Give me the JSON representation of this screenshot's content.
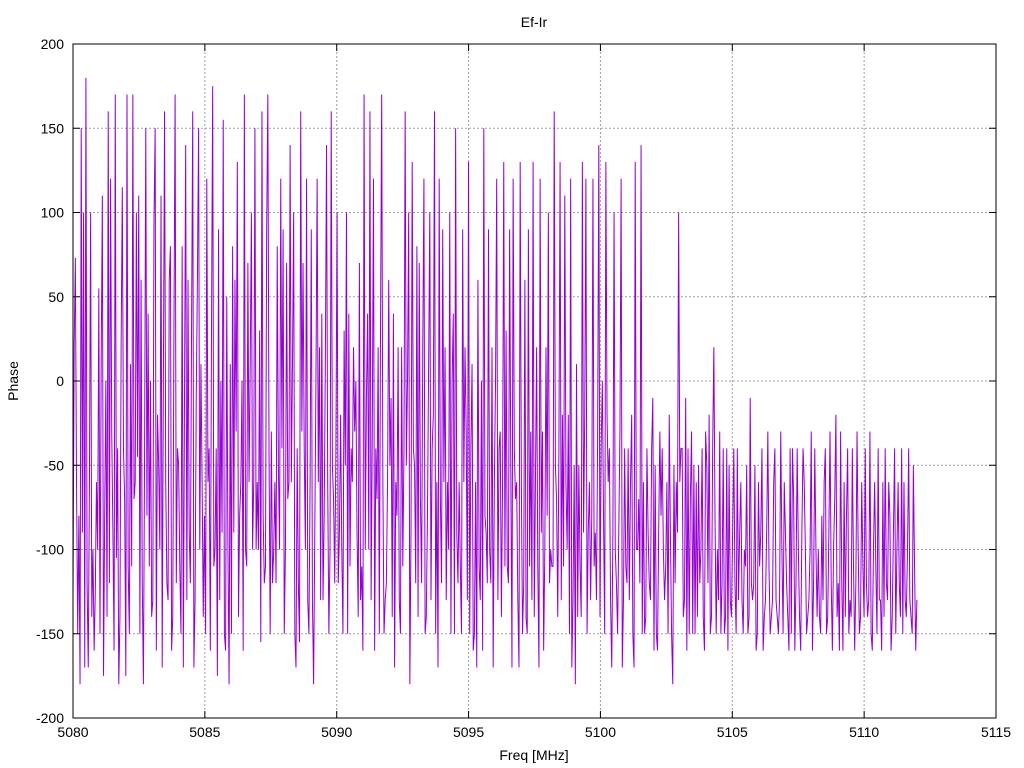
{
  "chart_data": {
    "type": "line",
    "title": "Ef-Ir",
    "xlabel": "Freq [MHz]",
    "ylabel": "Phase",
    "xlim": [
      5080,
      5115
    ],
    "ylim": [
      -200,
      200
    ],
    "xticks": [
      "5080",
      "5085",
      "5090",
      "5095",
      "5100",
      "5105",
      "5110",
      "5115"
    ],
    "yticks": [
      "200",
      "150",
      "100",
      "50",
      "0",
      "-50",
      "-100",
      "-150",
      "-200"
    ],
    "grid": true,
    "legend": "none",
    "series": [
      {
        "color": "#9400d3",
        "x_start": 5080.0,
        "x_end": 5112.0,
        "x_step": 0.05,
        "values": [
          -130,
          20,
          73,
          -60,
          -150,
          -80,
          -180,
          150,
          -90,
          100,
          -170,
          180,
          -120,
          -170,
          -60,
          100,
          -140,
          -100,
          -160,
          -125,
          -60,
          -100,
          55,
          -150,
          10,
          110,
          -175,
          -80,
          0,
          -140,
          160,
          -120,
          120,
          -30,
          -90,
          -160,
          170,
          -105,
          -40,
          -180,
          -140,
          20,
          115,
          -40,
          -70,
          -175,
          170,
          -110,
          -150,
          10,
          -110,
          170,
          -70,
          -60,
          100,
          -45,
          110,
          -150,
          60,
          -120,
          -180,
          -40,
          150,
          -80,
          40,
          -110,
          0,
          -140,
          -130,
          95,
          150,
          -160,
          -20,
          -50,
          -100,
          110,
          -170,
          0,
          160,
          -60,
          -120,
          -130,
          60,
          80,
          -160,
          -140,
          30,
          170,
          -120,
          -40,
          -50,
          -110,
          -150,
          80,
          -170,
          -10,
          140,
          -130,
          60,
          -90,
          -120,
          30,
          160,
          -170,
          -130,
          -10,
          60,
          150,
          -100,
          10,
          -60,
          -140,
          -80,
          -150,
          120,
          -60,
          -40,
          -160,
          30,
          175,
          -110,
          -100,
          -40,
          -175,
          90,
          -130,
          0,
          -90,
          155,
          -150,
          -160,
          50,
          -100,
          -180,
          10,
          -150,
          80,
          -90,
          60,
          -30,
          130,
          -140,
          -80,
          -60,
          0,
          -160,
          170,
          -100,
          -110,
          70,
          -60,
          10,
          100,
          -100,
          -60,
          150,
          -100,
          -60,
          -100,
          30,
          -155,
          160,
          -80,
          -120,
          -110,
          90,
          170,
          -40,
          -150,
          -30,
          -120,
          -100,
          -60,
          -120,
          80,
          -50,
          -100,
          120,
          -40,
          90,
          -150,
          -100,
          70,
          -70,
          -60,
          140,
          -60,
          10,
          100,
          -150,
          -170,
          -40,
          -120,
          -155,
          160,
          -30,
          70,
          -40,
          -100,
          120,
          -130,
          -150,
          -60,
          90,
          -130,
          -180,
          -90,
          0,
          120,
          -60,
          20,
          -130,
          40,
          -130,
          -80,
          10,
          140,
          -60,
          -150,
          -100,
          160,
          -50,
          -70,
          -120,
          -40,
          100,
          -120,
          -90,
          -20,
          -100,
          -150,
          30,
          -50,
          100,
          -150,
          40,
          -110,
          -40,
          -60,
          20,
          -30,
          0,
          -90,
          -140,
          70,
          -130,
          -110,
          -160,
          170,
          -100,
          -10,
          40,
          -100,
          160,
          -130,
          -30,
          120,
          -160,
          -40,
          -70,
          20,
          -150,
          30,
          170,
          -60,
          -150,
          -130,
          -120,
          -60,
          60,
          -50,
          -10,
          -140,
          40,
          -170,
          -60,
          -80,
          20,
          -130,
          -150,
          20,
          -110,
          -40,
          160,
          -50,
          0,
          100,
          -180,
          -90,
          130,
          -40,
          -50,
          -120,
          80,
          -140,
          70,
          -70,
          -120,
          20,
          120,
          -150,
          -140,
          -80,
          10,
          100,
          -130,
          -40,
          -20,
          160,
          -150,
          -60,
          -170,
          120,
          -70,
          -120,
          90,
          -60,
          20,
          -130,
          -60,
          -100,
          100,
          -150,
          0,
          40,
          -150,
          150,
          -90,
          -120,
          -60,
          -110,
          -150,
          90,
          -60,
          20,
          -30,
          -130,
          130,
          -150,
          -40,
          10,
          -160,
          -150,
          -60,
          -170,
          60,
          -110,
          -130,
          0,
          -160,
          150,
          -80,
          -90,
          -120,
          90,
          -100,
          -120,
          20,
          -170,
          -60,
          0,
          120,
          -130,
          -40,
          -30,
          -140,
          -60,
          130,
          -110,
          30,
          -110,
          -120,
          90,
          -50,
          -170,
          120,
          -40,
          -70,
          -60,
          -130,
          -170,
          130,
          -60,
          -150,
          -120,
          60,
          -140,
          -150,
          90,
          -110,
          -30,
          -130,
          130,
          -140,
          -60,
          20,
          -110,
          -170,
          120,
          -90,
          -30,
          -160,
          -100,
          20,
          -80,
          100,
          -120,
          -100,
          -110,
          -110,
          160,
          -50,
          -70,
          -140,
          -40,
          130,
          -130,
          -20,
          -110,
          110,
          -60,
          -100,
          -20,
          -150,
          120,
          -170,
          -130,
          -50,
          -180,
          10,
          -140,
          -50,
          -110,
          -140,
          130,
          -90,
          -20,
          120,
          -150,
          -90,
          -60,
          -130,
          -80,
          120,
          -110,
          -90,
          -130,
          -30,
          140,
          -140,
          -40,
          0,
          -80,
          -150,
          130,
          -20,
          -60,
          -40,
          -130,
          -170,
          -90,
          100,
          -100,
          -120,
          -150,
          -90,
          -30,
          120,
          -170,
          -130,
          -40,
          -110,
          -120,
          -40,
          -130,
          -60,
          -20,
          -150,
          -170,
          130,
          -100,
          -100,
          -70,
          -120,
          140,
          -150,
          -60,
          -150,
          -140,
          -40,
          -90,
          -120,
          -130,
          -40,
          -10,
          -160,
          -50,
          -150,
          -160,
          -90,
          -30,
          -80,
          -40,
          -100,
          -130,
          -110,
          -60,
          -150,
          -20,
          -90,
          -150,
          -180,
          -50,
          -120,
          -60,
          -90,
          100,
          -60,
          -40,
          -40,
          -140,
          -130,
          -10,
          -160,
          -40,
          -150,
          -70,
          -30,
          -150,
          -50,
          -150,
          -60,
          -140,
          -50,
          -120,
          -100,
          -40,
          -140,
          -160,
          -30,
          -50,
          -120,
          -20,
          -150,
          -140,
          -40,
          20,
          -80,
          -150,
          -100,
          -130,
          -30,
          -150,
          -120,
          -40,
          -150,
          -140,
          -40,
          -160,
          -50,
          -130,
          -140,
          -90,
          -40,
          -120,
          -150,
          -40,
          -130,
          -90,
          -60,
          -130,
          -150,
          -100,
          -110,
          -50,
          -150,
          -140,
          -10,
          -120,
          -130,
          -120,
          -50,
          -160,
          -150,
          -60,
          -110,
          -90,
          -40,
          -160,
          -140,
          -130,
          -90,
          -30,
          -110,
          -150,
          -140,
          -130,
          -60,
          -40,
          -130,
          -140,
          -150,
          -130,
          -30,
          -100,
          -150,
          -60,
          -90,
          -120,
          -140,
          -160,
          -40,
          -150,
          -40,
          -70,
          -160,
          -120,
          -40,
          -100,
          -140,
          -160,
          -90,
          -40,
          -60,
          -100,
          -150,
          -140,
          -130,
          -100,
          -30,
          -160,
          -120,
          -40,
          -100,
          -140,
          -100,
          -140,
          -150,
          -80,
          -130,
          -60,
          -40,
          -150,
          -140,
          -90,
          -30,
          -120,
          -160,
          -100,
          -70,
          -20,
          -140,
          -120,
          -160,
          -30,
          -120,
          -160,
          -60,
          -140,
          -80,
          -40,
          -150,
          -130,
          -140,
          -40,
          -110,
          -160,
          -120,
          -30,
          -100,
          -150,
          -140,
          -60,
          -110,
          -140,
          -40,
          -120,
          -140,
          -130,
          -30,
          -150,
          -160,
          -100,
          -60,
          -110,
          -150,
          -40,
          -130,
          -130,
          -160,
          -60,
          -140,
          -40,
          -120,
          -130,
          -60,
          -80,
          -160,
          -140,
          -90,
          -40,
          -150,
          -100,
          -60,
          -120,
          -140,
          -40,
          -150,
          -60,
          -130,
          -140,
          -100,
          -40,
          -130,
          -140,
          -150,
          -50,
          -110,
          -160,
          -130
        ]
      }
    ]
  }
}
